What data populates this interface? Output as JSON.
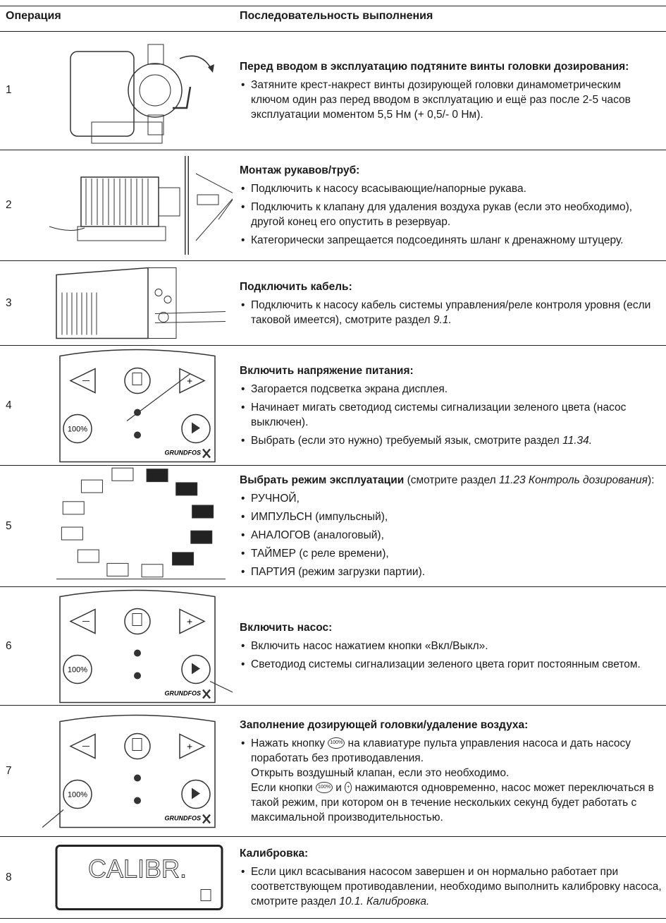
{
  "header": {
    "col1": "Операция",
    "col2": "Последовательность выполнения"
  },
  "rows": [
    {
      "number": "1",
      "title": [
        {
          "text": "Перед вводом в эксплуатацию подтяните винты головки дозирования:",
          "style": "bold"
        }
      ],
      "items": [
        {
          "bullet": true,
          "segments": [
            {
              "text": "Затяните крест-накрест винты дозирующей головки динамометрическим ключом один раз перед вводом в эксплуатацию и ещё раз после 2-5 часов эксплуатации моментом 5,5 Нм (+ 0,5/- 0 Нм).",
              "style": "normal"
            }
          ]
        }
      ]
    },
    {
      "number": "2",
      "title": [
        {
          "text": "Монтаж рукавов/труб:",
          "style": "bold"
        }
      ],
      "items": [
        {
          "bullet": true,
          "segments": [
            {
              "text": "Подключить к насосу всасывающие/напорные рукава.",
              "style": "normal"
            }
          ]
        },
        {
          "bullet": true,
          "segments": [
            {
              "text": "Подключить к клапану для удаления воздуха рукав (если это необходимо), другой конец его опустить в резервуар.",
              "style": "normal"
            }
          ]
        },
        {
          "bullet": true,
          "segments": [
            {
              "text": "Категорически запрещается подсоединять шланг к дренажному штуцеру.",
              "style": "normal"
            }
          ]
        }
      ]
    },
    {
      "number": "3",
      "title": [
        {
          "text": "Подключить кабель:",
          "style": "bold"
        }
      ],
      "items": [
        {
          "bullet": true,
          "segments": [
            {
              "text": "Подключить к насосу кабель системы управления/реле контроля уровня (если таковой имеется), смотрите раздел ",
              "style": "normal"
            },
            {
              "text": "9.1.",
              "style": "italic"
            }
          ]
        }
      ]
    },
    {
      "number": "4",
      "title": [
        {
          "text": "Включить напряжение питания:",
          "style": "bold"
        }
      ],
      "image_text": [
        "100%",
        "GRUNDFOS"
      ],
      "items": [
        {
          "bullet": true,
          "segments": [
            {
              "text": "Загорается подсветка экрана дисплея.",
              "style": "normal"
            }
          ]
        },
        {
          "bullet": true,
          "segments": [
            {
              "text": "Начинает мигать светодиод системы сигнализации зеленого цвета (насос выключен).",
              "style": "normal"
            }
          ]
        },
        {
          "bullet": true,
          "segments": [
            {
              "text": "Выбрать (если это нужно) требуемый язык, смотрите раздел ",
              "style": "normal"
            },
            {
              "text": "11.34.",
              "style": "italic"
            }
          ]
        }
      ]
    },
    {
      "number": "5",
      "title": [
        {
          "text": "Выбрать режим эксплуатации",
          "style": "bold"
        },
        {
          "text": " (смотрите раздел ",
          "style": "normal"
        },
        {
          "text": "11.23 Контроль дозирования",
          "style": "italic"
        },
        {
          "text": "):",
          "style": "normal"
        }
      ],
      "items": [
        {
          "bullet": true,
          "segments": [
            {
              "text": "РУЧНОЙ,",
              "style": "normal"
            }
          ]
        },
        {
          "bullet": true,
          "segments": [
            {
              "text": "ИМПУЛЬСН (импульсный),",
              "style": "normal"
            }
          ]
        },
        {
          "bullet": true,
          "segments": [
            {
              "text": "АНАЛОГОВ (аналоговый),",
              "style": "normal"
            }
          ]
        },
        {
          "bullet": true,
          "segments": [
            {
              "text": "ТАЙМЕР (с реле времени),",
              "style": "normal"
            }
          ]
        },
        {
          "bullet": true,
          "segments": [
            {
              "text": "ПАРТИЯ (режим загрузки партии).",
              "style": "normal"
            }
          ]
        }
      ]
    },
    {
      "number": "6",
      "title": [
        {
          "text": "Включить насос:",
          "style": "bold"
        }
      ],
      "image_text": [
        "100%",
        "GRUNDFOS"
      ],
      "items": [
        {
          "bullet": true,
          "segments": [
            {
              "text": "Включить насос нажатием кнопки «Вкл/Выкл».",
              "style": "normal"
            }
          ]
        },
        {
          "bullet": true,
          "segments": [
            {
              "text": "Светодиод системы сигнализации зеленого цвета горит постоянным светом.",
              "style": "normal"
            }
          ]
        }
      ]
    },
    {
      "number": "7",
      "title": [
        {
          "text": "Заполнение дозирующей головки/удаление воздуха:",
          "style": "bold"
        }
      ],
      "image_text": [
        "100%",
        "GRUNDFOS"
      ],
      "items": [
        {
          "bullet": true,
          "segments": [
            {
              "text": "Нажать кнопку ",
              "style": "normal"
            },
            {
              "text": "100%",
              "style": "icon"
            },
            {
              "text": " на клавиатуре пульта управления насоса и дать насосу поработать без противодавления.",
              "style": "normal"
            }
          ]
        },
        {
          "bullet": false,
          "segments": [
            {
              "text": "Открыть воздушный клапан, если это необходимо.",
              "style": "normal"
            }
          ]
        },
        {
          "bullet": false,
          "segments": [
            {
              "text": "Если кнопки ",
              "style": "normal"
            },
            {
              "text": "100%",
              "style": "icon"
            },
            {
              "text": " и ",
              "style": "normal"
            },
            {
              "text": "+",
              "style": "icon"
            },
            {
              "text": " нажимаются одновременно, насос может переключаться в такой режим, при котором он в течение нескольких секунд будет работать с максимальной производительностью.",
              "style": "normal"
            }
          ]
        }
      ]
    },
    {
      "number": "8",
      "title": [
        {
          "text": "Калибровка:",
          "style": "bold"
        }
      ],
      "image_text": [
        "CALIBR."
      ],
      "items": [
        {
          "bullet": true,
          "segments": [
            {
              "text": "Если цикл всасывания насосом завершен и он нормально работает при соответствующем противодавлении, необходимо выполнить калибровку насоса, смотрите раздел ",
              "style": "normal"
            },
            {
              "text": "10.1. Калибровка.",
              "style": "italic"
            }
          ]
        }
      ]
    }
  ]
}
